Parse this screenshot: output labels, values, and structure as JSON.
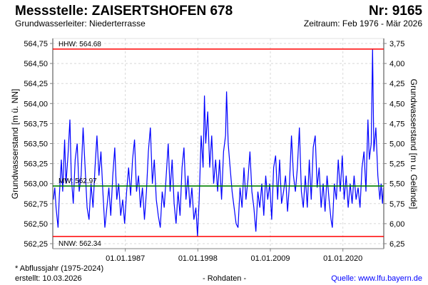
{
  "header": {
    "title": "Messstelle: ZAISERTSHOFEN 678",
    "number": "Nr: 9165",
    "aquifer": "Grundwasserleiter:   Niederterrasse",
    "period": "Zeitraum: Feb 1976 - Mär 2026"
  },
  "footer": {
    "footnote": "* Abflussjahr (1975-2024)",
    "created": "erstellt:  10.03.2026",
    "raw": "- Rohdaten -",
    "source": "Quelle: www.lfu.bayern.de"
  },
  "colors": {
    "series": "#0000ff",
    "extreme_lines": "#ff0000",
    "mean_line": "#008000",
    "grid": "#d8d8d8"
  },
  "chart_data": {
    "type": "line",
    "ylabel": "Grundwasserstand [m ü. NN]",
    "y2label": "Grundwasserstand [m u. Gelände]",
    "xlim": [
      1976.0,
      2026.2
    ],
    "ylim": [
      562.18,
      564.82
    ],
    "y2lim": [
      6.32,
      3.68
    ],
    "yticks": [
      "564,75",
      "564,50",
      "564,25",
      "564,00",
      "563,75",
      "563,50",
      "563,25",
      "563,00",
      "562,75",
      "562,50",
      "562,25"
    ],
    "ytick_values": [
      564.75,
      564.5,
      564.25,
      564.0,
      563.75,
      563.5,
      563.25,
      563.0,
      562.75,
      562.5,
      562.25
    ],
    "y2ticks": [
      "3,75",
      "4,00",
      "4,25",
      "4,50",
      "4,75",
      "5,00",
      "5,25",
      "5,50",
      "5,75",
      "6,00",
      "6,25"
    ],
    "xticks": [
      "01.01.1987",
      "01.01.1998",
      "01.01.2009",
      "01.01.2020"
    ],
    "xtick_values": [
      1987,
      1998,
      2009,
      2020
    ],
    "grid": true,
    "reference_lines": [
      {
        "label": "HHW: 564.68",
        "value": 564.68,
        "color": "#ff0000"
      },
      {
        "label": "MW: 562.97",
        "value": 562.97,
        "color": "#008000"
      },
      {
        "label": "NNW: 562.34",
        "value": 562.34,
        "color": "#ff0000"
      }
    ],
    "series": [
      {
        "name": "Grundwasserstand",
        "points": [
          [
            1976.1,
            562.8
          ],
          [
            1976.3,
            562.95
          ],
          [
            1976.5,
            562.7
          ],
          [
            1976.8,
            562.45
          ],
          [
            1977.0,
            562.85
          ],
          [
            1977.3,
            563.3
          ],
          [
            1977.5,
            562.9
          ],
          [
            1977.8,
            563.55
          ],
          [
            1978.0,
            563.0
          ],
          [
            1978.3,
            563.35
          ],
          [
            1978.6,
            563.8
          ],
          [
            1978.8,
            563.1
          ],
          [
            1979.1,
            562.75
          ],
          [
            1979.4,
            563.3
          ],
          [
            1979.7,
            563.5
          ],
          [
            1980.0,
            562.9
          ],
          [
            1980.3,
            563.1
          ],
          [
            1980.6,
            563.7
          ],
          [
            1980.9,
            563.2
          ],
          [
            1981.2,
            562.7
          ],
          [
            1981.5,
            562.55
          ],
          [
            1981.8,
            563.0
          ],
          [
            1982.1,
            562.7
          ],
          [
            1982.4,
            563.2
          ],
          [
            1982.7,
            563.6
          ],
          [
            1983.0,
            563.1
          ],
          [
            1983.3,
            563.4
          ],
          [
            1983.6,
            562.9
          ],
          [
            1983.9,
            562.45
          ],
          [
            1984.2,
            562.7
          ],
          [
            1984.5,
            562.95
          ],
          [
            1984.8,
            562.6
          ],
          [
            1985.1,
            563.1
          ],
          [
            1985.4,
            563.45
          ],
          [
            1985.7,
            562.8
          ],
          [
            1986.0,
            563.0
          ],
          [
            1986.3,
            562.6
          ],
          [
            1986.6,
            562.8
          ],
          [
            1986.9,
            562.5
          ],
          [
            1987.2,
            562.9
          ],
          [
            1987.5,
            563.2
          ],
          [
            1987.8,
            562.85
          ],
          [
            1988.1,
            563.3
          ],
          [
            1988.4,
            563.55
          ],
          [
            1988.7,
            562.9
          ],
          [
            1989.0,
            563.1
          ],
          [
            1989.3,
            562.7
          ],
          [
            1989.6,
            562.95
          ],
          [
            1989.9,
            562.55
          ],
          [
            1990.2,
            562.9
          ],
          [
            1990.5,
            563.4
          ],
          [
            1990.8,
            563.7
          ],
          [
            1991.1,
            563.0
          ],
          [
            1991.4,
            563.3
          ],
          [
            1991.7,
            562.8
          ],
          [
            1992.0,
            562.6
          ],
          [
            1992.3,
            562.45
          ],
          [
            1992.6,
            562.9
          ],
          [
            1992.9,
            562.7
          ],
          [
            1993.2,
            563.1
          ],
          [
            1993.5,
            563.5
          ],
          [
            1993.8,
            562.9
          ],
          [
            1994.1,
            563.3
          ],
          [
            1994.4,
            562.75
          ],
          [
            1994.7,
            562.5
          ],
          [
            1995.0,
            562.9
          ],
          [
            1995.3,
            562.6
          ],
          [
            1995.6,
            563.2
          ],
          [
            1995.9,
            563.45
          ],
          [
            1996.2,
            562.8
          ],
          [
            1996.5,
            563.1
          ],
          [
            1996.8,
            562.7
          ],
          [
            1997.1,
            562.95
          ],
          [
            1997.4,
            562.55
          ],
          [
            1997.7,
            562.7
          ],
          [
            1997.95,
            562.34
          ],
          [
            1998.2,
            562.8
          ],
          [
            1998.5,
            563.6
          ],
          [
            1998.8,
            563.2
          ],
          [
            1999.0,
            564.1
          ],
          [
            1999.2,
            563.5
          ],
          [
            1999.5,
            563.9
          ],
          [
            1999.8,
            563.2
          ],
          [
            2000.1,
            563.6
          ],
          [
            2000.4,
            563.0
          ],
          [
            2000.7,
            563.3
          ],
          [
            2001.0,
            562.9
          ],
          [
            2001.3,
            563.3
          ],
          [
            2001.6,
            562.8
          ],
          [
            2001.9,
            563.4
          ],
          [
            2002.2,
            563.6
          ],
          [
            2002.35,
            564.15
          ],
          [
            2002.6,
            563.5
          ],
          [
            2002.9,
            563.2
          ],
          [
            2003.2,
            562.9
          ],
          [
            2003.5,
            562.7
          ],
          [
            2003.8,
            562.5
          ],
          [
            2004.1,
            562.45
          ],
          [
            2004.4,
            562.95
          ],
          [
            2004.7,
            562.7
          ],
          [
            2005.0,
            563.2
          ],
          [
            2005.3,
            562.8
          ],
          [
            2005.6,
            563.05
          ],
          [
            2005.9,
            563.4
          ],
          [
            2006.2,
            562.9
          ],
          [
            2006.5,
            562.7
          ],
          [
            2006.8,
            562.4
          ],
          [
            2007.1,
            562.9
          ],
          [
            2007.4,
            562.7
          ],
          [
            2007.7,
            563.0
          ],
          [
            2008.0,
            562.6
          ],
          [
            2008.3,
            563.1
          ],
          [
            2008.6,
            562.8
          ],
          [
            2008.9,
            563.0
          ],
          [
            2009.2,
            562.55
          ],
          [
            2009.5,
            563.2
          ],
          [
            2009.8,
            563.35
          ],
          [
            2010.1,
            562.8
          ],
          [
            2010.4,
            563.3
          ],
          [
            2010.7,
            562.75
          ],
          [
            2011.0,
            562.9
          ],
          [
            2011.3,
            563.1
          ],
          [
            2011.6,
            562.65
          ],
          [
            2011.9,
            563.0
          ],
          [
            2012.2,
            563.6
          ],
          [
            2012.5,
            563.1
          ],
          [
            2012.8,
            562.9
          ],
          [
            2013.1,
            563.2
          ],
          [
            2013.4,
            563.7
          ],
          [
            2013.7,
            562.9
          ],
          [
            2014.0,
            562.7
          ],
          [
            2014.3,
            563.1
          ],
          [
            2014.6,
            562.7
          ],
          [
            2014.9,
            563.3
          ],
          [
            2015.2,
            562.8
          ],
          [
            2015.5,
            563.45
          ],
          [
            2015.8,
            563.6
          ],
          [
            2016.1,
            562.95
          ],
          [
            2016.4,
            563.2
          ],
          [
            2016.7,
            562.7
          ],
          [
            2017.0,
            563.0
          ],
          [
            2017.3,
            562.65
          ],
          [
            2017.6,
            563.1
          ],
          [
            2017.9,
            562.8
          ],
          [
            2018.2,
            562.55
          ],
          [
            2018.4,
            562.45
          ],
          [
            2018.7,
            563.0
          ],
          [
            2019.0,
            562.8
          ],
          [
            2019.3,
            563.3
          ],
          [
            2019.6,
            562.9
          ],
          [
            2019.9,
            563.35
          ],
          [
            2020.2,
            562.8
          ],
          [
            2020.5,
            563.1
          ],
          [
            2020.8,
            562.7
          ],
          [
            2021.1,
            563.0
          ],
          [
            2021.4,
            562.75
          ],
          [
            2021.7,
            563.1
          ],
          [
            2022.0,
            562.8
          ],
          [
            2022.3,
            562.95
          ],
          [
            2022.6,
            562.7
          ],
          [
            2022.9,
            563.2
          ],
          [
            2023.2,
            563.4
          ],
          [
            2023.5,
            562.9
          ],
          [
            2023.8,
            563.8
          ],
          [
            2024.0,
            563.3
          ],
          [
            2024.3,
            563.5
          ],
          [
            2024.5,
            564.68
          ],
          [
            2024.7,
            563.4
          ],
          [
            2025.0,
            563.7
          ],
          [
            2025.3,
            563.1
          ],
          [
            2025.6,
            562.8
          ],
          [
            2025.8,
            563.0
          ],
          [
            2026.0,
            562.75
          ],
          [
            2026.15,
            562.95
          ]
        ]
      }
    ]
  }
}
